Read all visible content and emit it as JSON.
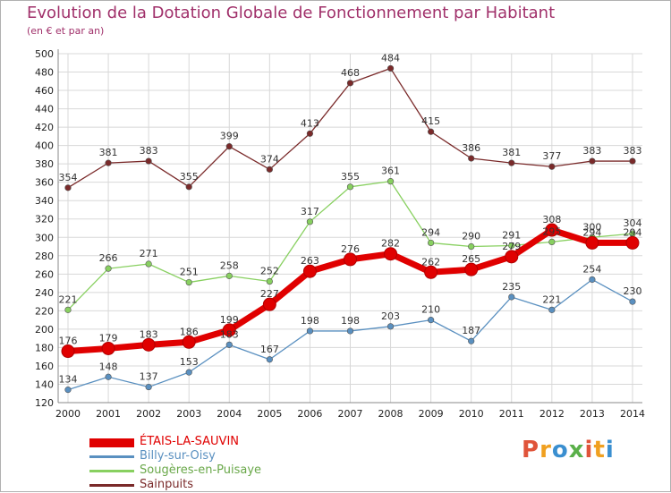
{
  "header": {
    "title": "Evolution de la Dotation Globale de Fonctionnement par Habitant",
    "subtitle": "(en € et par an)"
  },
  "logo": {
    "text": "Proxiti",
    "colors": [
      "#e0543a",
      "#f0a020",
      "#3a8fd0",
      "#5ab04a"
    ]
  },
  "chart_data": {
    "type": "line",
    "title": "Evolution de la Dotation Globale de Fonctionnement par Habitant",
    "subtitle": "(en € et par an)",
    "xlabel": "",
    "ylabel": "",
    "x": [
      "2000",
      "2001",
      "2002",
      "2003",
      "2004",
      "2005",
      "2006",
      "2007",
      "2008",
      "2009",
      "2010",
      "2011",
      "2012",
      "2013",
      "2014"
    ],
    "ylim": [
      120,
      500
    ],
    "yticks": [
      120,
      140,
      160,
      180,
      200,
      220,
      240,
      260,
      280,
      300,
      320,
      340,
      360,
      380,
      400,
      420,
      440,
      460,
      480,
      500
    ],
    "grid": true,
    "legend_position": "bottom-left",
    "series": [
      {
        "name": "Sainpuits",
        "color": "#7a2a2a",
        "values": [
          354,
          381,
          383,
          355,
          399,
          374,
          413,
          468,
          484,
          415,
          386,
          381,
          377,
          383,
          383
        ],
        "labels": [
          "354",
          "381",
          "383",
          "355",
          "399",
          "374",
          "413",
          "468",
          "484",
          "415",
          "386",
          "381",
          "377",
          "383",
          "383"
        ]
      },
      {
        "name": "Sougères-en-Puisaye",
        "color": "#88d060",
        "values": [
          221,
          266,
          271,
          251,
          258,
          252,
          317,
          355,
          361,
          294,
          290,
          291,
          295,
          300,
          304
        ],
        "labels": [
          "221",
          "266",
          "271",
          "251",
          "258",
          "252",
          "317",
          "355",
          "361",
          "294",
          "290",
          "291",
          "295",
          "300",
          "304"
        ]
      },
      {
        "name": "Billy-sur-Oisy",
        "color": "#5a90c0",
        "values": [
          134,
          148,
          137,
          153,
          183,
          167,
          198,
          198,
          203,
          210,
          187,
          235,
          221,
          254,
          230
        ],
        "labels": [
          "134",
          "148",
          "137",
          "153",
          "183",
          "167",
          "198",
          "198",
          "203",
          "210",
          "187",
          "235",
          "221",
          "254",
          "230"
        ]
      },
      {
        "name": "ÉTAIS-LA-SAUVIN",
        "color": "#e00000",
        "values": [
          176,
          179,
          183,
          186,
          199,
          227,
          263,
          276,
          282,
          262,
          265,
          279,
          308,
          294,
          294
        ],
        "labels": [
          "176",
          "179",
          "183",
          "186",
          "199",
          "227",
          "263",
          "276",
          "282",
          "262",
          "265",
          "279",
          "308",
          "294",
          "294"
        ]
      }
    ]
  },
  "legend": [
    {
      "name": "ÉTAIS-LA-SAUVIN",
      "color": "#e00000"
    },
    {
      "name": "Billy-sur-Oisy",
      "color": "#5a90c0"
    },
    {
      "name": "Sougères-en-Puisaye",
      "color": "#88d060"
    },
    {
      "name": "Sainpuits",
      "color": "#7a2a2a"
    }
  ]
}
